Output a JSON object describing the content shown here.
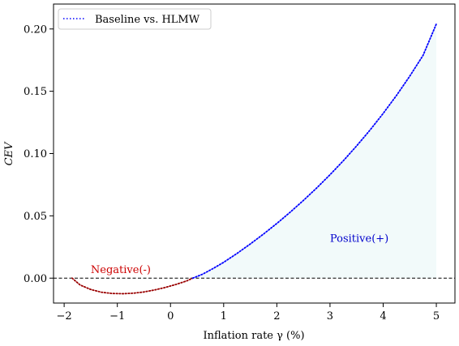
{
  "chart_data": {
    "type": "line",
    "xlabel": "Inflation rate γ (%)",
    "ylabel": "CEV",
    "xlim": [
      -2.2,
      5.35
    ],
    "ylim": [
      -0.02,
      0.22
    ],
    "xticks": [
      -2,
      -1,
      0,
      1,
      2,
      3,
      4,
      5
    ],
    "yticks": [
      0.0,
      0.05,
      0.1,
      0.15,
      0.2
    ],
    "xtick_labels": [
      "−2",
      "−1",
      "0",
      "1",
      "2",
      "3",
      "4",
      "5"
    ],
    "ytick_labels": [
      "0.00",
      "0.05",
      "0.10",
      "0.15",
      "0.20"
    ],
    "legend": {
      "placement": "top-left",
      "entries": [
        "Baseline vs. HLMW"
      ]
    },
    "grid": false,
    "zero_line": {
      "y": 0,
      "style": "dashed",
      "color": "#000000"
    },
    "series": [
      {
        "name": "Baseline vs. HLMW",
        "style": "dotted",
        "color": "#0000ff",
        "negative_color": "#990000",
        "x": [
          -1.85,
          -1.7,
          -1.5,
          -1.3,
          -1.1,
          -0.9,
          -0.7,
          -0.5,
          -0.3,
          -0.1,
          0.1,
          0.3,
          0.42,
          0.6,
          0.8,
          1.0,
          1.25,
          1.5,
          1.75,
          2.0,
          2.25,
          2.5,
          2.75,
          3.0,
          3.25,
          3.5,
          3.75,
          4.0,
          4.25,
          4.5,
          4.75,
          5.0
        ],
        "y": [
          0.0,
          -0.0055,
          -0.0091,
          -0.0113,
          -0.0123,
          -0.0125,
          -0.0121,
          -0.0111,
          -0.0095,
          -0.0075,
          -0.0051,
          -0.0023,
          0.0,
          0.0031,
          0.0077,
          0.0127,
          0.0198,
          0.0274,
          0.0354,
          0.0439,
          0.0529,
          0.0624,
          0.0724,
          0.083,
          0.0942,
          0.1061,
          0.1187,
          0.1322,
          0.1466,
          0.1621,
          0.1788,
          0.204
        ]
      }
    ],
    "annotations": [
      {
        "text": "Negative(-)",
        "x": -1.5,
        "y": 0.004,
        "color": "#cc0000"
      },
      {
        "text": "Positive(+)",
        "x": 3.0,
        "y": 0.029,
        "color": "#0000cc"
      }
    ],
    "fill": {
      "color": "#f2fafa",
      "between": "positive"
    }
  }
}
